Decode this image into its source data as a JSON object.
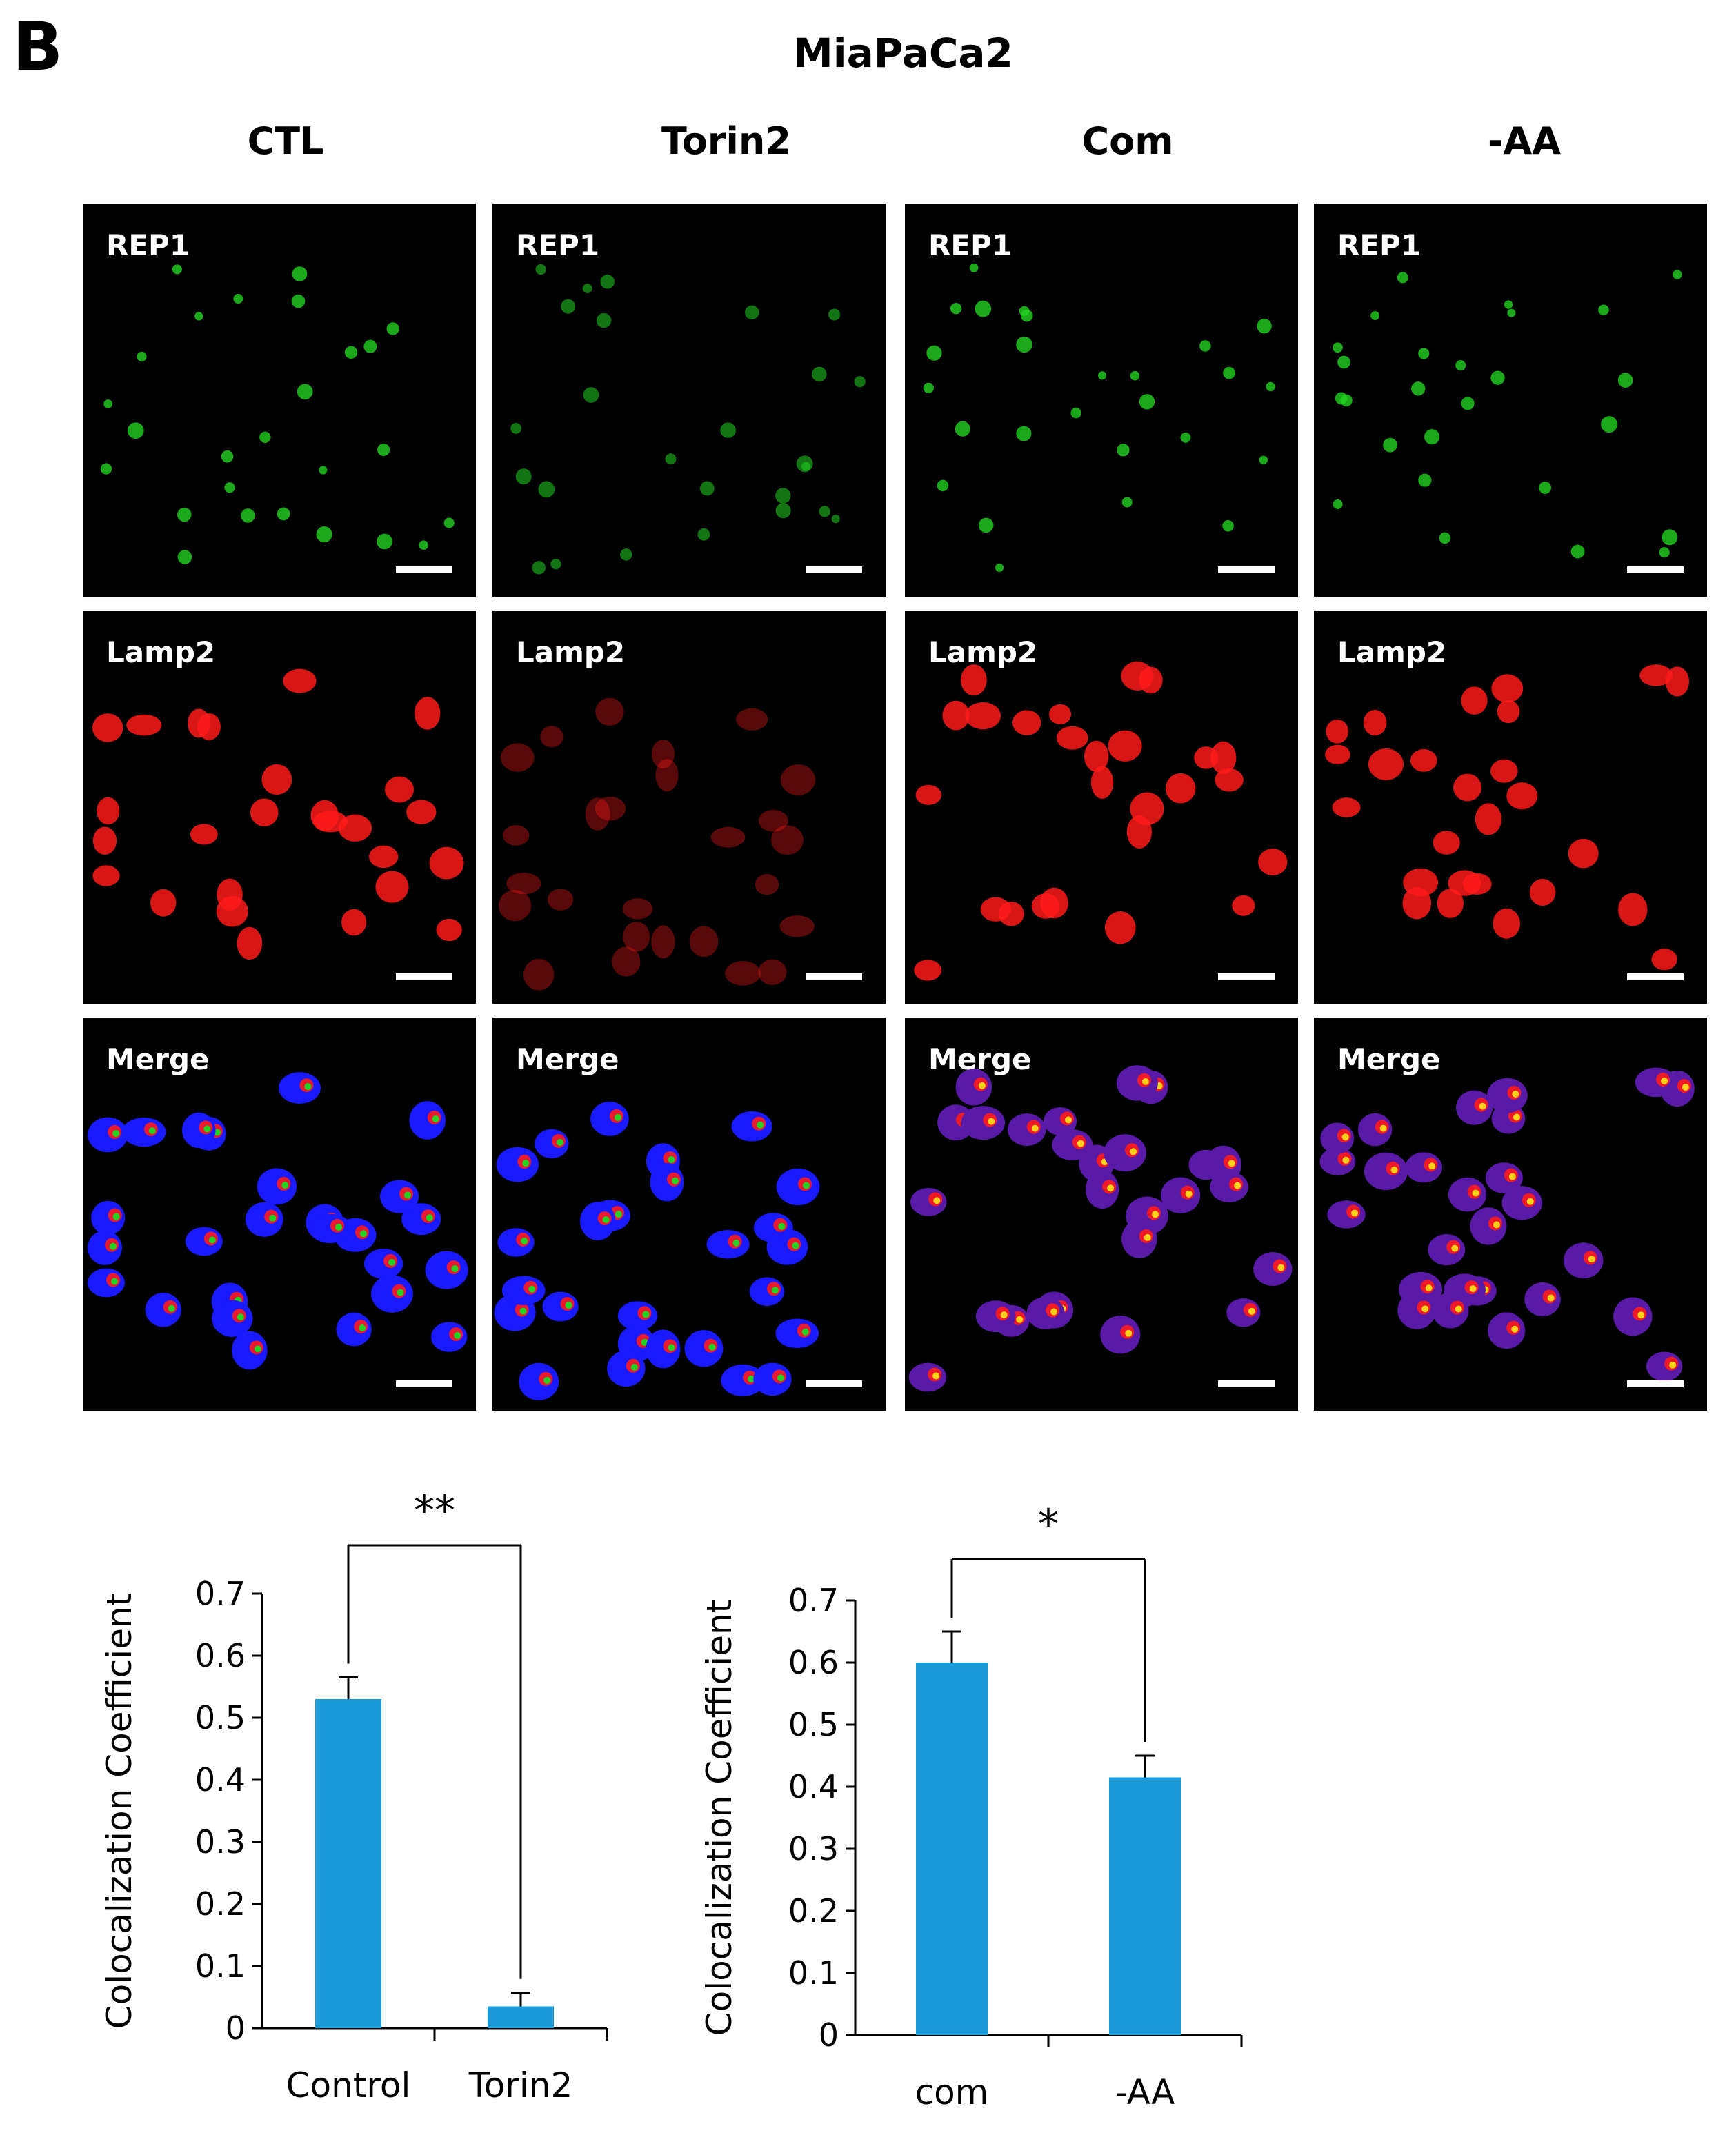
{
  "figure": {
    "panel_letter": "B",
    "title": "MiaPaCa2",
    "columns": [
      "CTL",
      "Torin2",
      "Com",
      "-AA"
    ],
    "rows": [
      "REP1",
      "Lamp2",
      "Merge"
    ],
    "colors": {
      "rep1": "#22d322",
      "lamp2": "#ff1a1a",
      "nucleus": "#1a1aff",
      "bar": "#1a9ad6"
    }
  },
  "chart_data": [
    {
      "type": "bar",
      "categories": [
        "Control",
        "Torin2"
      ],
      "values": [
        0.53,
        0.035
      ],
      "errors": [
        0.035,
        0.022
      ],
      "ylabel": "Colocalization Coefficient",
      "ylim": [
        0,
        0.7
      ],
      "yticks": [
        "0",
        "0.1",
        "0.2",
        "0.3",
        "0.4",
        "0.5",
        "0.6",
        "0.7"
      ],
      "significance": "**",
      "grid": false
    },
    {
      "type": "bar",
      "categories": [
        "com",
        "-AA"
      ],
      "values": [
        0.6,
        0.415
      ],
      "errors": [
        0.05,
        0.035
      ],
      "ylabel": "Colocalization Coefficient",
      "ylim": [
        0,
        0.7
      ],
      "yticks": [
        "0",
        "0.1",
        "0.2",
        "0.3",
        "0.4",
        "0.5",
        "0.6",
        "0.7"
      ],
      "significance": "*",
      "grid": false
    }
  ]
}
